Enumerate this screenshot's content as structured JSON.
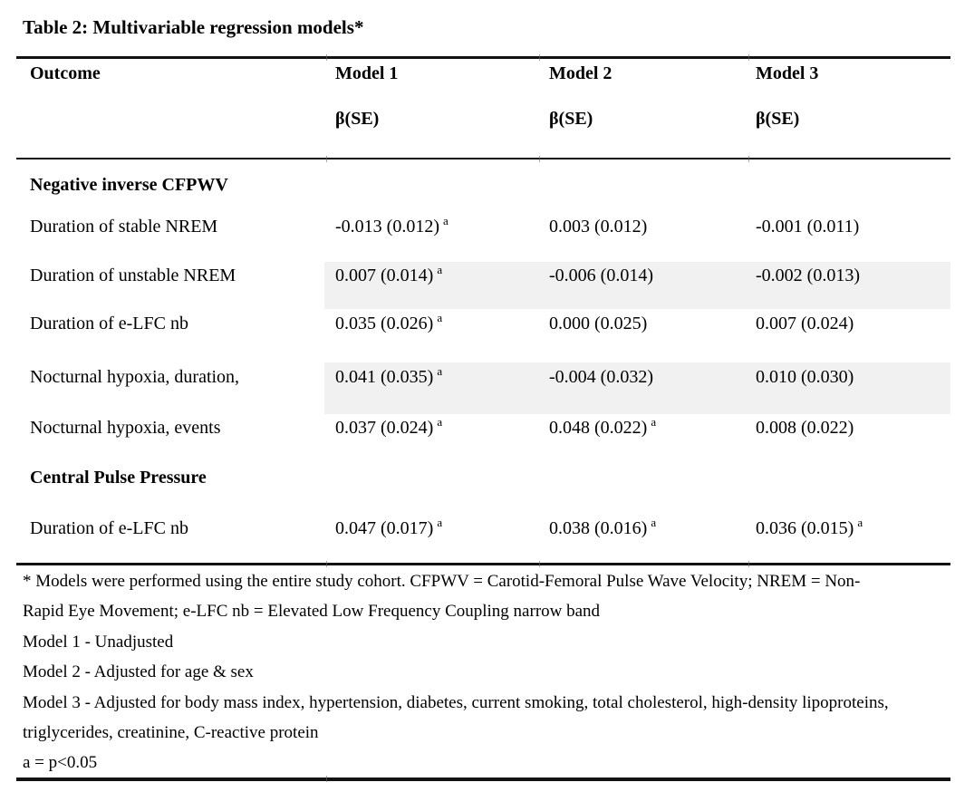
{
  "title": "Table 2: Multivariable regression models*",
  "header": {
    "outcome": "Outcome",
    "models": [
      "Model 1",
      "Model 2",
      "Model 3"
    ],
    "beta_label": "β(SE)"
  },
  "sections": [
    {
      "name": "Negative inverse CFPWV",
      "rows": [
        {
          "outcome": "Duration of stable NREM",
          "m1": "-0.013 (0.012)",
          "m1s": "a",
          "m2": "0.003 (0.012)",
          "m2s": "",
          "m3": "-0.001 (0.011)",
          "m3s": "",
          "shaded": false
        },
        {
          "outcome": "Duration of unstable NREM",
          "m1": "0.007 (0.014)",
          "m1s": "a",
          "m2": "-0.006 (0.014)",
          "m2s": "",
          "m3": "-0.002 (0.013)",
          "m3s": "",
          "shaded": true
        },
        {
          "outcome": "Duration of e-LFC nb",
          "m1": "0.035 (0.026)",
          "m1s": "a",
          "m2": "0.000 (0.025)",
          "m2s": "",
          "m3": "0.007 (0.024)",
          "m3s": "",
          "shaded": false
        },
        {
          "outcome": "Nocturnal hypoxia, duration,",
          "m1": "0.041 (0.035)",
          "m1s": "a",
          "m2": "-0.004 (0.032)",
          "m2s": "",
          "m3": "0.010 (0.030)",
          "m3s": "",
          "shaded": true
        },
        {
          "outcome": "Nocturnal hypoxia, events",
          "m1": "0.037 (0.024)",
          "m1s": "a",
          "m2": "0.048 (0.022)",
          "m2s": "a",
          "m3": "0.008 (0.022)",
          "m3s": "",
          "shaded": false
        }
      ]
    },
    {
      "name": "Central Pulse Pressure",
      "rows": [
        {
          "outcome": "Duration of e-LFC nb",
          "m1": "0.047 (0.017)",
          "m1s": "a",
          "m2": "0.038 (0.016)",
          "m2s": "a",
          "m3": "0.036 (0.015)",
          "m3s": "a",
          "shaded": false
        }
      ]
    }
  ],
  "footnotes": [
    "* Models were performed using the entire study cohort. CFPWV = Carotid-Femoral Pulse Wave Velocity; NREM = Non-",
    "Rapid Eye Movement; e-LFC nb = Elevated Low Frequency Coupling narrow band",
    "Model 1 - Unadjusted",
    "Model 2 - Adjusted for age & sex",
    "Model 3 - Adjusted for body mass index, hypertension, diabetes, current smoking, total cholesterol, high-density lipoproteins,",
    "triglycerides, creatinine, C-reactive protein",
    "a = p<0.05"
  ],
  "colors": {
    "row_shading": "#f1f1f1",
    "rule": "#121212",
    "text": "#000000",
    "background": "#ffffff"
  }
}
